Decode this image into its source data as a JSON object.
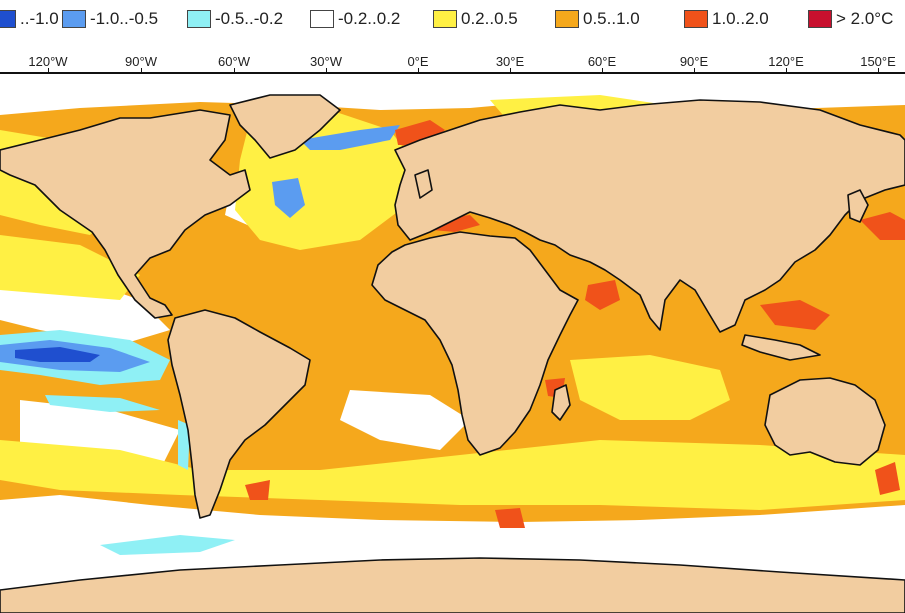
{
  "legend": {
    "items": [
      {
        "label": "..-1.0",
        "color": "#1f4fcf"
      },
      {
        "label": "-1.0..-0.5",
        "color": "#5b9cf0"
      },
      {
        "label": "-0.5..-0.2",
        "color": "#8ff0f5"
      },
      {
        "label": "-0.2..0.2",
        "color": "#ffffff"
      },
      {
        "label": "0.2..0.5",
        "color": "#fff044"
      },
      {
        "label": "0.5..1.0",
        "color": "#f5a81c"
      },
      {
        "label": "1.0..2.0",
        "color": "#f0521a"
      },
      {
        "label": "> 2.0°C",
        "color": "#c8102e"
      }
    ]
  },
  "axis": {
    "longitude_labels": [
      "120°W",
      "90°W",
      "60°W",
      "30°W",
      "0°E",
      "30°E",
      "60°E",
      "90°E",
      "120°E",
      "150°E"
    ]
  },
  "map": {
    "colors": {
      "land": "#f2cda0",
      "coast": "#111111",
      "ocean_base": "#f5a81c",
      "warm_mild": "#fff044",
      "neutral": "#ffffff",
      "cool_mild": "#8ff0f5",
      "cool": "#5b9cf0",
      "cold": "#1f4fcf",
      "hot": "#f0521a"
    }
  }
}
